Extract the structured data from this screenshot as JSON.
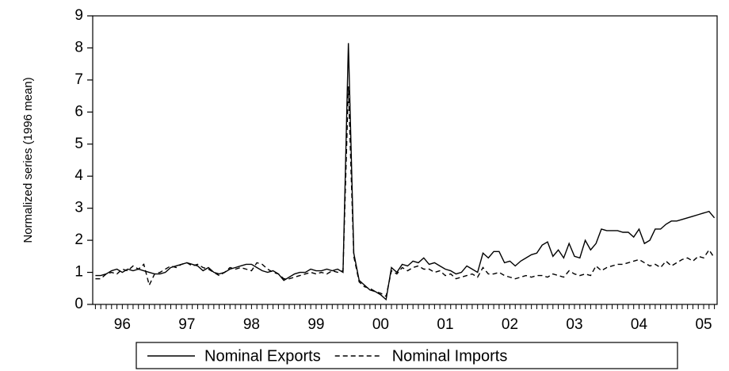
{
  "chart_data": {
    "type": "line",
    "y_label": "Normalized series (1996 mean)",
    "ylim": [
      0,
      9
    ],
    "yticks": [
      0,
      1,
      2,
      3,
      4,
      5,
      6,
      7,
      8,
      9
    ],
    "categories": [
      null,
      null,
      null,
      null,
      null,
      "96",
      null,
      null,
      null,
      null,
      null,
      null,
      null,
      null,
      null,
      null,
      null,
      "97",
      null,
      null,
      null,
      null,
      null,
      null,
      null,
      null,
      null,
      null,
      null,
      "98",
      null,
      null,
      null,
      null,
      null,
      null,
      null,
      null,
      null,
      null,
      null,
      "99",
      null,
      null,
      null,
      null,
      null,
      null,
      null,
      null,
      null,
      null,
      null,
      "00",
      null,
      null,
      null,
      null,
      null,
      null,
      null,
      null,
      null,
      null,
      null,
      "01",
      null,
      null,
      null,
      null,
      null,
      null,
      null,
      null,
      null,
      null,
      null,
      "02",
      null,
      null,
      null,
      null,
      null,
      null,
      null,
      null,
      null,
      null,
      null,
      "03",
      null,
      null,
      null,
      null,
      null,
      null,
      null,
      null,
      null,
      null,
      null,
      "04",
      null,
      null,
      null,
      null,
      null,
      null,
      null,
      null,
      null,
      null,
      null,
      "05",
      null,
      null
    ],
    "series": [
      {
        "name": "Nominal Exports",
        "color": "#000000",
        "dash": "none",
        "values": [
          0.9,
          0.9,
          0.95,
          1.05,
          1.1,
          1.0,
          1.1,
          1.05,
          1.1,
          1.05,
          1.0,
          0.95,
          0.95,
          1.0,
          1.15,
          1.2,
          1.25,
          1.3,
          1.25,
          1.2,
          1.05,
          1.15,
          1.0,
          0.95,
          1.0,
          1.1,
          1.15,
          1.2,
          1.25,
          1.25,
          1.15,
          1.05,
          1.0,
          1.05,
          0.95,
          0.75,
          0.85,
          0.95,
          1.0,
          1.0,
          1.1,
          1.05,
          1.05,
          1.1,
          1.05,
          1.1,
          1.0,
          8.15,
          1.6,
          0.75,
          0.6,
          0.45,
          0.4,
          0.3,
          0.15,
          1.15,
          1.0,
          1.25,
          1.2,
          1.35,
          1.3,
          1.45,
          1.25,
          1.3,
          1.2,
          1.1,
          1.05,
          0.95,
          1.0,
          1.2,
          1.1,
          1.0,
          1.6,
          1.45,
          1.65,
          1.65,
          1.3,
          1.35,
          1.2,
          1.35,
          1.45,
          1.55,
          1.6,
          1.85,
          1.95,
          1.5,
          1.7,
          1.45,
          1.9,
          1.5,
          1.45,
          2.0,
          1.7,
          1.9,
          2.35,
          2.3,
          2.3,
          2.3,
          2.25,
          2.25,
          2.1,
          2.35,
          1.9,
          2.0,
          2.35,
          2.35,
          2.5,
          2.6,
          2.6,
          2.65,
          2.7,
          2.75,
          2.8,
          2.85,
          2.9,
          2.7
        ]
      },
      {
        "name": "Nominal Imports",
        "color": "#000000",
        "dash": "dashed",
        "values": [
          0.8,
          0.8,
          0.95,
          1.0,
          0.95,
          1.1,
          1.05,
          1.2,
          1.1,
          1.25,
          0.6,
          0.95,
          1.0,
          1.1,
          1.2,
          1.15,
          1.25,
          1.3,
          1.2,
          1.25,
          1.15,
          1.1,
          1.0,
          0.9,
          1.0,
          1.15,
          1.1,
          1.15,
          1.1,
          1.05,
          1.3,
          1.25,
          1.1,
          1.0,
          0.95,
          0.8,
          0.8,
          0.85,
          0.9,
          0.95,
          1.0,
          0.95,
          1.0,
          0.95,
          1.05,
          1.0,
          1.05,
          6.8,
          1.5,
          0.7,
          0.55,
          0.5,
          0.4,
          0.35,
          0.25,
          1.05,
          0.95,
          1.15,
          1.05,
          1.15,
          1.2,
          1.1,
          1.1,
          1.0,
          1.05,
          0.9,
          0.95,
          0.8,
          0.85,
          0.9,
          0.95,
          0.85,
          1.15,
          0.95,
          0.95,
          1.0,
          0.9,
          0.85,
          0.8,
          0.85,
          0.9,
          0.85,
          0.9,
          0.9,
          0.85,
          0.95,
          0.9,
          0.85,
          1.05,
          0.95,
          0.9,
          0.95,
          0.9,
          1.2,
          1.05,
          1.15,
          1.2,
          1.25,
          1.25,
          1.3,
          1.35,
          1.4,
          1.3,
          1.2,
          1.25,
          1.15,
          1.35,
          1.2,
          1.3,
          1.4,
          1.45,
          1.35,
          1.5,
          1.45,
          1.7,
          1.45
        ]
      }
    ],
    "legend": "bottom"
  }
}
